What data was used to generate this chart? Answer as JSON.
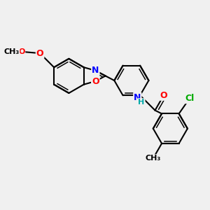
{
  "bg_color": "#f0f0f0",
  "bond_color": "#000000",
  "bond_width": 1.5,
  "atom_colors": {
    "N": "#0000ff",
    "O": "#ff0000",
    "Cl": "#00aa00",
    "H": "#00aaaa",
    "C": "#000000"
  },
  "font_size": 9
}
